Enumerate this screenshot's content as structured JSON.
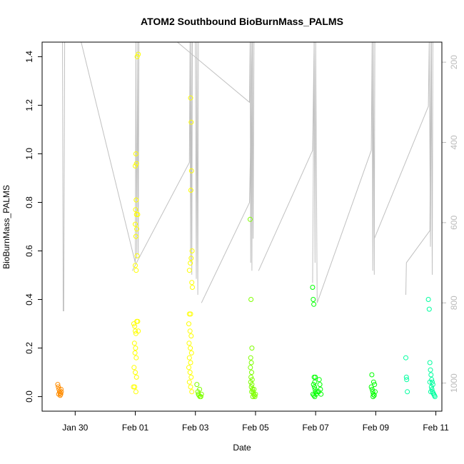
{
  "chart_data": {
    "type": "scatter",
    "title": "ATOM2 Southbound BioBurnMass_PALMS",
    "xlabel": "Date",
    "ylabel": "BioBurnMass_PALMS",
    "x_unit": "days since Jan 28 00:00",
    "xlim": [
      0.9,
      14.2
    ],
    "ylim": [
      -0.06,
      1.46
    ],
    "y_ticks": [
      0.0,
      0.2,
      0.4,
      0.6,
      0.8,
      1.0,
      1.2,
      1.4
    ],
    "y_tick_labels": [
      "0.0",
      "0.2",
      "0.4",
      "0.6",
      "0.8",
      "1.0",
      "1.2",
      "1.4"
    ],
    "x_ticks": [
      2,
      4,
      6,
      8,
      10,
      12,
      14
    ],
    "x_tick_labels": [
      "Jan 30",
      "Feb 01",
      "Feb 03",
      "Feb 05",
      "Feb 07",
      "Feb 09",
      "Feb 11"
    ],
    "right_axis": {
      "label": "",
      "ylim": [
        1070,
        150
      ],
      "ticks": [
        200,
        400,
        600,
        800,
        1000
      ],
      "tick_labels": [
        "200",
        "400",
        "600",
        "800",
        "1000"
      ],
      "color": "#bbbbbb"
    },
    "series": [
      {
        "color": "#ff8c00",
        "points": [
          [
            1.42,
            0.05
          ],
          [
            1.44,
            0.04
          ],
          [
            1.46,
            0.03
          ],
          [
            1.48,
            0.02
          ],
          [
            1.5,
            0.015
          ],
          [
            1.52,
            0.01
          ],
          [
            1.54,
            0.02
          ],
          [
            1.45,
            0.01
          ],
          [
            1.5,
            0.005
          ],
          [
            1.53,
            0.03
          ]
        ]
      },
      {
        "color": "#ffff00",
        "points": [
          [
            3.95,
            0.3
          ],
          [
            3.98,
            0.29
          ],
          [
            4.0,
            0.27
          ],
          [
            4.02,
            0.26
          ],
          [
            3.97,
            0.22
          ],
          [
            4.01,
            0.2
          ],
          [
            3.99,
            0.18
          ],
          [
            4.03,
            0.16
          ],
          [
            3.96,
            0.12
          ],
          [
            4.0,
            0.1
          ],
          [
            4.04,
            0.08
          ],
          [
            3.98,
            0.04
          ],
          [
            4.02,
            0.02
          ],
          [
            4.05,
            0.31
          ],
          [
            3.94,
            0.04
          ],
          [
            4.08,
            0.31
          ],
          [
            4.1,
            0.27
          ],
          [
            4.0,
            0.54
          ],
          [
            4.03,
            0.52
          ],
          [
            4.06,
            0.58
          ],
          [
            4.02,
            0.66
          ],
          [
            4.05,
            0.69
          ],
          [
            4.0,
            0.71
          ],
          [
            4.04,
            0.75
          ],
          [
            4.08,
            0.75
          ],
          [
            4.01,
            0.77
          ],
          [
            4.03,
            0.81
          ],
          [
            4.0,
            0.95
          ],
          [
            4.02,
            1.0
          ],
          [
            4.04,
            0.96
          ],
          [
            4.06,
            1.4
          ],
          [
            4.1,
            1.41
          ],
          [
            5.8,
            0.34
          ],
          [
            5.84,
            0.34
          ],
          [
            5.78,
            0.3
          ],
          [
            5.82,
            0.27
          ],
          [
            5.86,
            0.25
          ],
          [
            5.79,
            0.22
          ],
          [
            5.83,
            0.2
          ],
          [
            5.87,
            0.18
          ],
          [
            5.8,
            0.16
          ],
          [
            5.84,
            0.14
          ],
          [
            5.78,
            0.12
          ],
          [
            5.82,
            0.1
          ],
          [
            5.86,
            0.08
          ],
          [
            5.8,
            0.06
          ],
          [
            5.84,
            0.04
          ],
          [
            5.88,
            0.02
          ],
          [
            5.83,
            0.55
          ],
          [
            5.86,
            0.57
          ],
          [
            5.89,
            0.6
          ],
          [
            5.8,
            0.52
          ],
          [
            5.9,
            0.45
          ],
          [
            5.88,
            0.47
          ],
          [
            5.85,
            0.85
          ],
          [
            5.87,
            0.93
          ],
          [
            5.86,
            1.13
          ],
          [
            5.84,
            1.23
          ]
        ]
      },
      {
        "color": "#7fff00",
        "points": [
          [
            6.05,
            0.05
          ],
          [
            6.08,
            0.02
          ],
          [
            6.1,
            0.01
          ],
          [
            6.12,
            0.005
          ],
          [
            6.15,
            0.0
          ],
          [
            6.18,
            0.0
          ],
          [
            6.2,
            0.01
          ],
          [
            6.14,
            0.03
          ],
          [
            7.82,
            0.73
          ],
          [
            7.85,
            0.4
          ],
          [
            7.88,
            0.2
          ],
          [
            7.84,
            0.16
          ],
          [
            7.86,
            0.14
          ],
          [
            7.83,
            0.12
          ],
          [
            7.87,
            0.1
          ],
          [
            7.85,
            0.08
          ],
          [
            7.89,
            0.07
          ],
          [
            7.84,
            0.06
          ],
          [
            7.88,
            0.05
          ],
          [
            7.86,
            0.04
          ],
          [
            7.9,
            0.03
          ],
          [
            7.92,
            0.02
          ],
          [
            7.94,
            0.01
          ],
          [
            7.96,
            0.005
          ],
          [
            7.98,
            0.0
          ],
          [
            8.0,
            0.01
          ],
          [
            7.87,
            0.02
          ],
          [
            7.91,
            0.0
          ],
          [
            7.95,
            0.03
          ]
        ]
      },
      {
        "color": "#00ff00",
        "points": [
          [
            9.9,
            0.45
          ],
          [
            9.92,
            0.4
          ],
          [
            9.94,
            0.38
          ],
          [
            9.95,
            0.08
          ],
          [
            9.97,
            0.06
          ],
          [
            9.93,
            0.05
          ],
          [
            9.96,
            0.04
          ],
          [
            9.98,
            0.03
          ],
          [
            10.0,
            0.02
          ],
          [
            9.91,
            0.01
          ],
          [
            9.94,
            0.005
          ],
          [
            9.97,
            0.0
          ],
          [
            10.02,
            0.01
          ],
          [
            10.05,
            0.02
          ],
          [
            10.1,
            0.02
          ],
          [
            10.12,
            0.07
          ],
          [
            10.14,
            0.05
          ],
          [
            10.16,
            0.03
          ],
          [
            10.18,
            0.01
          ],
          [
            9.99,
            0.08
          ],
          [
            11.85,
            0.04
          ],
          [
            11.88,
            0.03
          ],
          [
            11.9,
            0.02
          ],
          [
            11.92,
            0.01
          ],
          [
            11.95,
            0.005
          ],
          [
            11.87,
            0.09
          ],
          [
            11.93,
            0.06
          ],
          [
            11.96,
            0.05
          ],
          [
            11.91,
            0.0
          ],
          [
            11.98,
            0.02
          ]
        ]
      },
      {
        "color": "#00ffa0",
        "points": [
          [
            13.0,
            0.16
          ],
          [
            13.02,
            0.08
          ],
          [
            13.03,
            0.07
          ],
          [
            13.05,
            0.02
          ],
          [
            13.75,
            0.4
          ],
          [
            13.78,
            0.36
          ],
          [
            13.8,
            0.14
          ],
          [
            13.82,
            0.11
          ],
          [
            13.84,
            0.09
          ],
          [
            13.86,
            0.07
          ],
          [
            13.88,
            0.06
          ],
          [
            13.9,
            0.05
          ],
          [
            13.85,
            0.04
          ],
          [
            13.87,
            0.03
          ],
          [
            13.89,
            0.02
          ],
          [
            13.91,
            0.015
          ],
          [
            13.93,
            0.01
          ],
          [
            13.95,
            0.005
          ],
          [
            13.97,
            0.0
          ],
          [
            13.8,
            0.06
          ],
          [
            13.83,
            0.02
          ]
        ]
      }
    ],
    "altitude_trace": {
      "color": "#c0c0c0",
      "segments": [
        [
          [
            1.58,
            150
          ],
          [
            1.6,
            820
          ],
          [
            1.62,
            820
          ],
          [
            1.65,
            150
          ]
        ],
        [
          [
            2.2,
            150
          ],
          [
            4.0,
            700
          ],
          [
            4.02,
            150
          ],
          [
            4.05,
            690
          ],
          [
            4.08,
            150
          ],
          [
            4.1,
            680
          ],
          [
            4.12,
            150
          ]
        ],
        [
          [
            3.9,
            720
          ],
          [
            5.8,
            450
          ],
          [
            5.82,
            150
          ],
          [
            5.84,
            700
          ],
          [
            5.86,
            150
          ],
          [
            5.88,
            730
          ],
          [
            5.9,
            150
          ]
        ],
        [
          [
            6.0,
            150
          ],
          [
            6.03,
            740
          ],
          [
            6.05,
            150
          ],
          [
            6.08,
            780
          ],
          [
            6.1,
            150
          ]
        ],
        [
          [
            5.4,
            150
          ],
          [
            7.8,
            300
          ],
          [
            7.82,
            150
          ],
          [
            7.84,
            700
          ],
          [
            7.86,
            150
          ],
          [
            7.88,
            720
          ],
          [
            7.9,
            150
          ]
        ],
        [
          [
            6.2,
            800
          ],
          [
            7.8,
            550
          ],
          [
            7.9,
            150
          ],
          [
            7.92,
            640
          ],
          [
            7.95,
            150
          ]
        ],
        [
          [
            9.9,
            750
          ],
          [
            9.95,
            150
          ],
          [
            9.98,
            700
          ],
          [
            10.0,
            150
          ],
          [
            10.05,
            800
          ]
        ],
        [
          [
            8.1,
            720
          ],
          [
            9.9,
            420
          ],
          [
            9.95,
            150
          ]
        ],
        [
          [
            10.05,
            800
          ],
          [
            11.85,
            420
          ],
          [
            11.88,
            150
          ],
          [
            11.9,
            720
          ],
          [
            11.92,
            150
          ],
          [
            11.95,
            730
          ],
          [
            11.97,
            150
          ]
        ],
        [
          [
            11.95,
            640
          ],
          [
            13.75,
            310
          ],
          [
            13.78,
            150
          ],
          [
            13.82,
            660
          ],
          [
            13.85,
            150
          ],
          [
            13.88,
            730
          ],
          [
            13.9,
            150
          ]
        ],
        [
          [
            13.0,
            780
          ],
          [
            13.02,
            700
          ],
          [
            13.8,
            620
          ],
          [
            13.84,
            150
          ]
        ]
      ]
    }
  }
}
